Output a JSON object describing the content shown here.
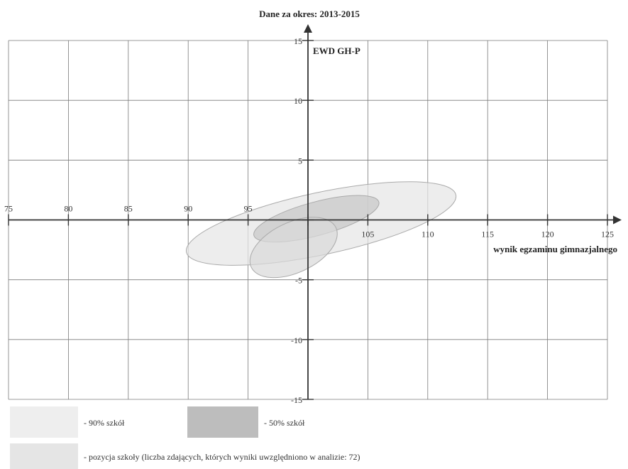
{
  "chart_data": {
    "type": "scatter",
    "title": "Dane za okres: 2013-2015",
    "xlabel": "wynik egzaminu gimnazjalnego",
    "ylabel": "EWD GH-P",
    "xlim": [
      75,
      125
    ],
    "ylim": [
      -15,
      15
    ],
    "x_ticks": [
      75,
      80,
      85,
      90,
      95,
      100,
      105,
      110,
      115,
      120,
      125
    ],
    "x_tick_labels": [
      "75",
      "80",
      "85",
      "90",
      "95",
      "",
      "105",
      "110",
      "115",
      "120",
      "125"
    ],
    "y_ticks": [
      -15,
      -10,
      -5,
      0,
      5,
      10,
      15
    ],
    "y_tick_labels": [
      "-15",
      "-10",
      "-5",
      "",
      "5",
      "10",
      "15"
    ],
    "grid": true,
    "series": [
      {
        "name": "- 90% szkół",
        "shape": "ellipse",
        "center": [
          101.1,
          -0.3
        ],
        "rx": 11.5,
        "ry": 2.6,
        "angle_deg": -12,
        "color": "#e6e6e6"
      },
      {
        "name": "- 50% szkół",
        "shape": "ellipse",
        "center": [
          100.7,
          0.1
        ],
        "rx": 5.4,
        "ry": 1.4,
        "angle_deg": -15,
        "color": "#c8c8c8"
      },
      {
        "name": "- pozycja szkoły (liczba zdających, których wyniki uwzględniono w analizie: 72)",
        "shape": "ellipse",
        "center": [
          98.8,
          -2.3
        ],
        "rx": 3.9,
        "ry": 2.1,
        "angle_deg": -25,
        "color": "#dadada"
      }
    ]
  },
  "legend": {
    "item_90": "- 90% szkół",
    "item_50": "- 50% szkół",
    "item_school": "- pozycja szkoły (liczba zdających, których wyniki uwzględniono w analizie: 72)"
  },
  "colors": {
    "grid": "#7a7a7a",
    "axis": "#333333",
    "swatch_90": "#eeeeee",
    "swatch_50": "#bdbdbd",
    "swatch_school": "#e5e5e5"
  }
}
